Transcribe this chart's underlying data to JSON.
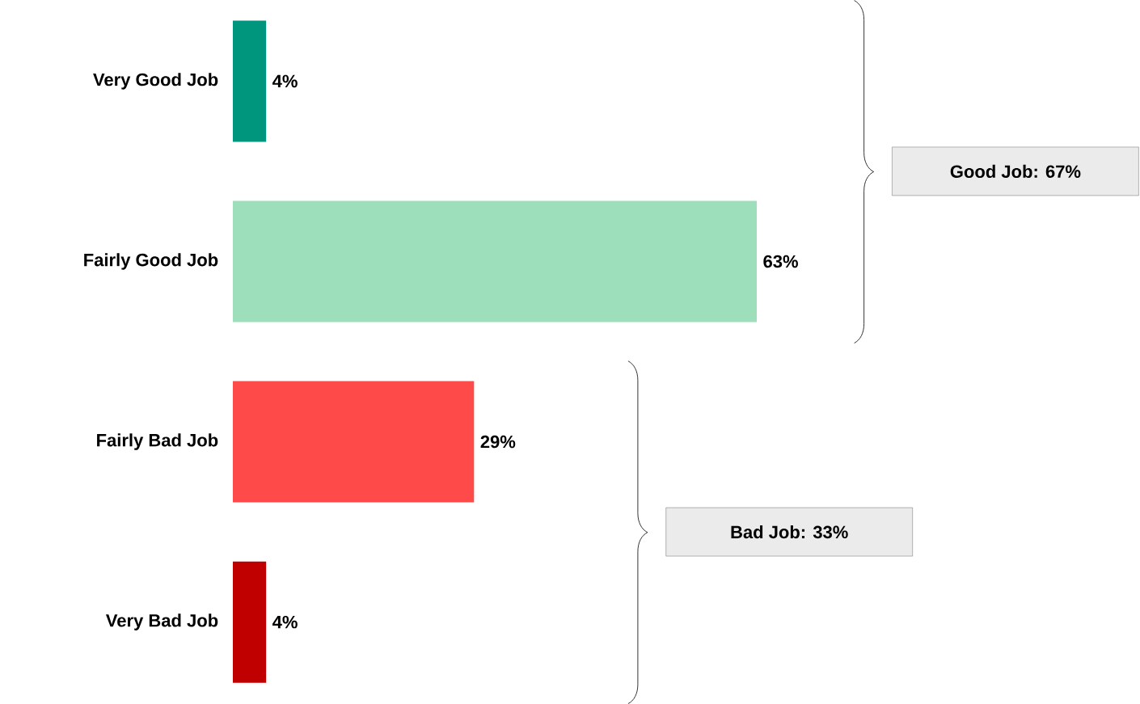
{
  "chart_data": {
    "type": "bar",
    "orientation": "horizontal",
    "categories": [
      "Very Good Job",
      "Fairly Good Job",
      "Fairly Bad Job",
      "Very Bad Job"
    ],
    "values": [
      4,
      63,
      29,
      4
    ],
    "value_labels": [
      "4%",
      "63%",
      "29%",
      "4%"
    ],
    "colors": [
      "#00957d",
      "#9ddfbb",
      "#ff4a4a",
      "#c00000"
    ],
    "annotations": [
      "Good Job:  67%",
      "Bad Job:  33%"
    ]
  }
}
